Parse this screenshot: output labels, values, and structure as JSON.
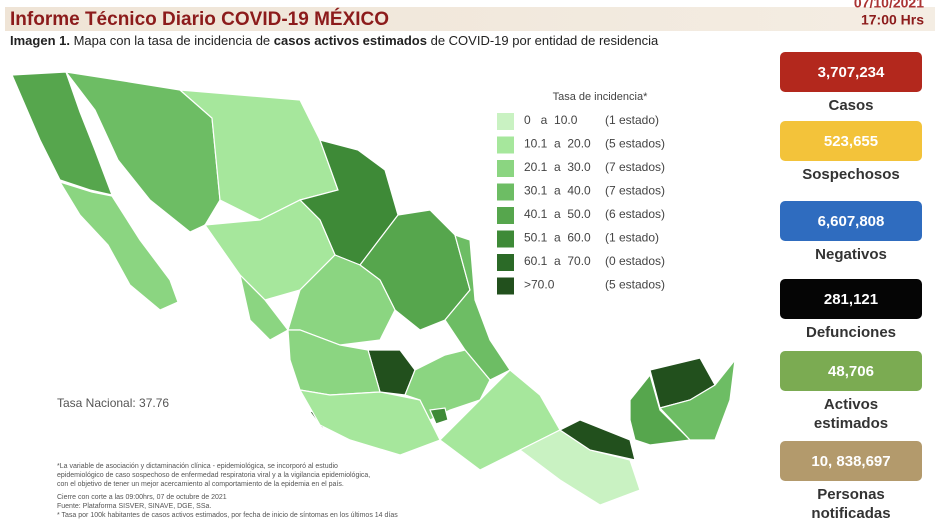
{
  "header": {
    "title": "Informe Técnico Diario COVID-19 MÉXICO",
    "date": "07/10/2021",
    "time": "17:00 Hrs"
  },
  "subtitle": [
    {
      "text": "Imagen 1.",
      "bold": true
    },
    {
      "text": " Mapa con la tasa de incidencia de ",
      "bold": false
    },
    {
      "text": "casos activos estimados",
      "bold": true
    },
    {
      "text": " de COVID-19 por entidad de residencia",
      "bold": false
    }
  ],
  "legend": {
    "title": "Tasa de incidencia*",
    "items": [
      {
        "range": "0   a  10.0",
        "count": "(1 estado)",
        "color": "#c9f2c2"
      },
      {
        "range": "10.1  a  20.0",
        "count": "(5 estados)",
        "color": "#a6e79c"
      },
      {
        "range": "20.1  a  30.0",
        "count": "(7 estados)",
        "color": "#8bd581"
      },
      {
        "range": "30.1  a  40.0",
        "count": "(7 estados)",
        "color": "#6dbd64"
      },
      {
        "range": "40.1  a  50.0",
        "count": "(6 estados)",
        "color": "#56a64d"
      },
      {
        "range": "50.1  a  60.0",
        "count": "(1 estado)",
        "color": "#3e8a37"
      },
      {
        "range": "60.1  a  70.0",
        "count": "(0 estados)",
        "color": "#2b6a27"
      },
      {
        "range": ">70.0",
        "count": "(5 estados)",
        "color": "#22501d"
      }
    ]
  },
  "national_rate": "Tasa Nacional: 37.76",
  "footnotes": [
    "*La variable de asociación y dictaminación clínica - epidemiológica, se incorporó al estudio",
    "epidemiológico de caso sospechoso de enfermedad respiratoria viral y a la vigilancia epidemiológica,",
    "con el objetivo de tener un mejor acercamiento al comportamiento de la epidemia en el país.",
    "Cierre con corte a las 09:00hrs, 07 de octubre de 2021",
    "Fuente: Plataforma SISVER, SINAVE, DGE, SSa.",
    "* Tasa por 100k habitantes de casos activos estimados, por fecha de inicio de síntomas en los últimos 14 días"
  ],
  "stats": [
    {
      "value": "3,707,234",
      "label": [
        "Casos"
      ],
      "color": "#b3281d",
      "text_color": "#ffffff"
    },
    {
      "value": "523,655",
      "label": [
        "Sospechosos"
      ],
      "color": "#f3c33a",
      "text_color": "#ffffff"
    },
    {
      "value": "6,607,808",
      "label": [
        "Negativos"
      ],
      "color": "#2f6cbf",
      "text_color": "#ffffff"
    },
    {
      "value": "281,121",
      "label": [
        "Defunciones"
      ],
      "color": "#050505",
      "text_color": "#ffffff"
    },
    {
      "value": "48,706",
      "label": [
        "Activos",
        "estimados"
      ],
      "color": "#7bab52",
      "text_color": "#ffffff"
    },
    {
      "value": "10, 838,697",
      "label": [
        "Personas",
        "notificadas"
      ],
      "color": "#b39a6c",
      "text_color": "#ffffff"
    }
  ]
}
